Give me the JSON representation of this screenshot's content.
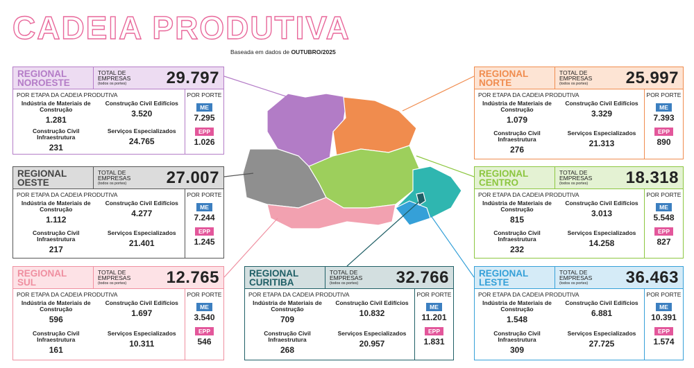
{
  "title": "CADEIA PRODUTIVA",
  "subtitle": {
    "prefix": "Baseada em dados de",
    "date": "OUTUBRO/2025"
  },
  "labels": {
    "total": "TOTAL DE EMPRESAS",
    "total_note": "(todos os portes)",
    "by_stage": "POR ETAPA DA CADEIA PRODUTIVA",
    "by_size": "POR PORTE",
    "stages": [
      "Indústria de Materiais de Construção",
      "Construção Civil Edifícios",
      "Construção Civil Infraestrutura",
      "Serviços Especializados"
    ],
    "me": "ME",
    "epp": "EPP"
  },
  "regions": [
    {
      "name": [
        "REGIONAL",
        "NOROESTE"
      ],
      "total": "29.797",
      "stages": [
        "1.281",
        "3.520",
        "231",
        "24.765"
      ],
      "me": "7.295",
      "epp": "1.026"
    },
    {
      "name": [
        "REGIONAL",
        "OESTE"
      ],
      "total": "27.007",
      "stages": [
        "1.112",
        "4.277",
        "217",
        "21.401"
      ],
      "me": "7.244",
      "epp": "1.245"
    },
    {
      "name": [
        "REGIONAL",
        "SUL"
      ],
      "total": "12.765",
      "stages": [
        "596",
        "1.697",
        "161",
        "10.311"
      ],
      "me": "3.540",
      "epp": "546"
    },
    {
      "name": [
        "REGIONAL",
        "CURITIBA"
      ],
      "total": "32.766",
      "stages": [
        "709",
        "10.832",
        "268",
        "20.957"
      ],
      "me": "11.201",
      "epp": "1.831"
    },
    {
      "name": [
        "REGIONAL",
        "NORTE"
      ],
      "total": "25.997",
      "stages": [
        "1.079",
        "3.329",
        "276",
        "21.313"
      ],
      "me": "7.393",
      "epp": "890"
    },
    {
      "name": [
        "REGIONAL",
        "CENTRO"
      ],
      "total": "18.318",
      "stages": [
        "815",
        "3.013",
        "232",
        "14.258"
      ],
      "me": "5.548",
      "epp": "827"
    },
    {
      "name": [
        "REGIONAL",
        "LESTE"
      ],
      "total": "36.463",
      "stages": [
        "1.548",
        "6.881",
        "309",
        "27.725"
      ],
      "me": "10.391",
      "epp": "1.574"
    }
  ]
}
